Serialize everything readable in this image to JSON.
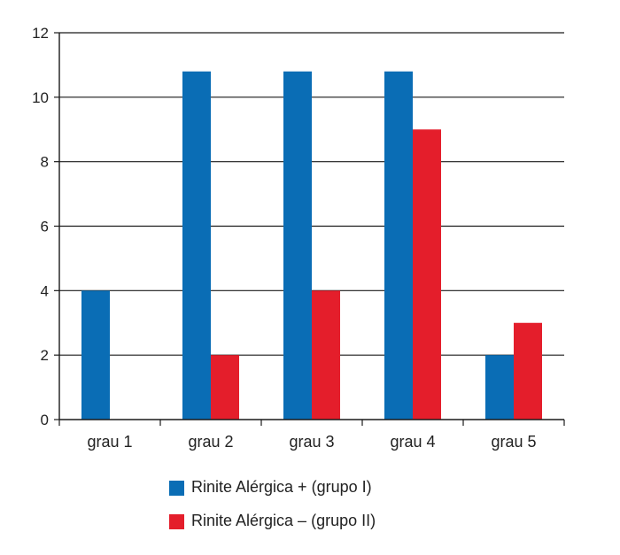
{
  "chart_data": {
    "type": "bar",
    "categories": [
      "grau 1",
      "grau 2",
      "grau 3",
      "grau 4",
      "grau 5"
    ],
    "series": [
      {
        "name": "Rinite Alérgica + (grupo I)",
        "values": [
          4,
          10.8,
          10.8,
          10.8,
          2
        ],
        "color": "#0a6db5"
      },
      {
        "name": "Rinite Alérgica – (grupo II)",
        "values": [
          0,
          2,
          4,
          9,
          3
        ],
        "color": "#e41e2b"
      }
    ],
    "yticks": [
      "0",
      "2",
      "4",
      "6",
      "8",
      "10",
      "12"
    ],
    "ylim": [
      0,
      12
    ],
    "grid": true,
    "legend_position": "bottom"
  }
}
